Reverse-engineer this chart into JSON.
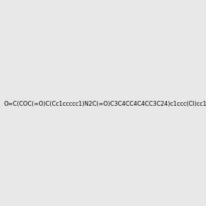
{
  "smiles": "O=C(COC(=O)C(Cc1ccccc1)N2C(=O)C3C4CC4C4CC3C24)c1ccc(Cl)cc1",
  "image_size": 300,
  "background_color": "#e8e8e8",
  "bond_color": "#000000",
  "atom_colors": {
    "O": "#ff0000",
    "N": "#0000ff",
    "Cl": "#00aa00"
  }
}
